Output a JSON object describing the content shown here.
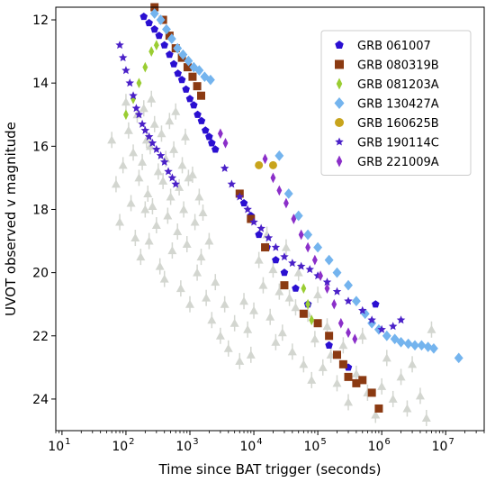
{
  "chart_data": {
    "type": "scatter",
    "xlabel": "Time since BAT trigger (seconds)",
    "ylabel": "UVOT observed v magnitude",
    "x_scale": "log",
    "xlim": [
      8,
      40000000
    ],
    "ylim": [
      25.0,
      11.6
    ],
    "x_ticks": [
      10,
      100,
      1000,
      10000,
      100000,
      1000000,
      10000000
    ],
    "x_tick_labels": [
      [
        "10",
        "1"
      ],
      [
        "10",
        "2"
      ],
      [
        "10",
        "3"
      ],
      [
        "10",
        "4"
      ],
      [
        "10",
        "5"
      ],
      [
        "10",
        "6"
      ],
      [
        "10",
        "7"
      ]
    ],
    "y_ticks": [
      12,
      14,
      16,
      18,
      20,
      22,
      24
    ],
    "y_tick_labels": [
      "12",
      "14",
      "16",
      "18",
      "20",
      "22",
      "24"
    ],
    "grid": false,
    "legend_position": "upper right",
    "background_sample": {
      "name": "",
      "color": "#d3d6d0",
      "marker": "triangle-up",
      "points": [
        [
          60,
          15.8
        ],
        [
          70,
          17.2
        ],
        [
          80,
          18.4
        ],
        [
          90,
          16.6
        ],
        [
          100,
          14.6
        ],
        [
          110,
          15.5
        ],
        [
          120,
          17.8
        ],
        [
          130,
          16.2
        ],
        [
          140,
          18.9
        ],
        [
          150,
          15.0
        ],
        [
          160,
          17.0
        ],
        [
          170,
          19.5
        ],
        [
          180,
          16.5
        ],
        [
          190,
          14.8
        ],
        [
          200,
          18.0
        ],
        [
          210,
          15.8
        ],
        [
          220,
          17.5
        ],
        [
          230,
          19.0
        ],
        [
          240,
          16.0
        ],
        [
          250,
          14.5
        ],
        [
          260,
          17.9
        ],
        [
          280,
          15.3
        ],
        [
          300,
          18.5
        ],
        [
          320,
          16.8
        ],
        [
          340,
          19.8
        ],
        [
          360,
          15.6
        ],
        [
          380,
          17.1
        ],
        [
          400,
          20.2
        ],
        [
          420,
          16.4
        ],
        [
          450,
          18.2
        ],
        [
          480,
          15.2
        ],
        [
          500,
          17.6
        ],
        [
          530,
          19.3
        ],
        [
          560,
          16.1
        ],
        [
          600,
          14.9
        ],
        [
          640,
          18.7
        ],
        [
          680,
          17.3
        ],
        [
          720,
          20.5
        ],
        [
          760,
          16.6
        ],
        [
          800,
          18.0
        ],
        [
          850,
          15.7
        ],
        [
          900,
          19.1
        ],
        [
          950,
          17.0
        ],
        [
          1000,
          21.0
        ],
        [
          1100,
          16.9
        ],
        [
          1200,
          18.4
        ],
        [
          1300,
          20.0
        ],
        [
          1400,
          17.6
        ],
        [
          1500,
          19.5
        ],
        [
          1600,
          18.1
        ],
        [
          1800,
          20.8
        ],
        [
          2000,
          19.0
        ],
        [
          2200,
          21.5
        ],
        [
          2500,
          20.3
        ],
        [
          3000,
          22.0
        ],
        [
          3500,
          21.0
        ],
        [
          4000,
          22.4
        ],
        [
          5000,
          21.6
        ],
        [
          6000,
          22.8
        ],
        [
          7000,
          20.9
        ],
        [
          8000,
          21.8
        ],
        [
          9000,
          22.6
        ],
        [
          10000,
          21.2
        ],
        [
          12000,
          19.6
        ],
        [
          14000,
          20.4
        ],
        [
          16000,
          18.8
        ],
        [
          18000,
          21.4
        ],
        [
          20000,
          19.9
        ],
        [
          22000,
          22.2
        ],
        [
          25000,
          20.6
        ],
        [
          28000,
          21.9
        ],
        [
          32000,
          19.2
        ],
        [
          36000,
          20.8
        ],
        [
          40000,
          22.5
        ],
        [
          45000,
          21.1
        ],
        [
          50000,
          20.0
        ],
        [
          60000,
          22.9
        ],
        [
          70000,
          21.3
        ],
        [
          80000,
          23.4
        ],
        [
          90000,
          22.1
        ],
        [
          100000,
          20.7
        ],
        [
          120000,
          23.0
        ],
        [
          140000,
          21.7
        ],
        [
          160000,
          22.6
        ],
        [
          200000,
          23.5
        ],
        [
          250000,
          22.3
        ],
        [
          300000,
          24.1
        ],
        [
          400000,
          23.2
        ],
        [
          500000,
          22.0
        ],
        [
          600000,
          23.8
        ],
        [
          800000,
          24.5
        ],
        [
          1000000,
          23.6
        ],
        [
          1200000,
          22.7
        ],
        [
          1500000,
          24.0
        ],
        [
          2000000,
          23.3
        ],
        [
          2500000,
          24.3
        ],
        [
          3000000,
          22.9
        ],
        [
          4000000,
          23.9
        ],
        [
          5000000,
          24.6
        ],
        [
          6000000,
          21.8
        ]
      ]
    },
    "series": [
      {
        "name": "GRB 061007",
        "color": "#2a0fd1",
        "marker": "pentagon",
        "x": [
          190,
          230,
          280,
          330,
          400,
          480,
          560,
          650,
          750,
          870,
          1000,
          1150,
          1320,
          1520,
          1750,
          2000,
          2200,
          2500,
          7000,
          9000,
          12000,
          16000,
          22000,
          30000,
          45000,
          70000,
          150000,
          300000,
          800000
        ],
        "y": [
          11.9,
          12.1,
          12.3,
          12.5,
          12.8,
          13.1,
          13.4,
          13.7,
          13.9,
          14.2,
          14.5,
          14.7,
          15.0,
          15.2,
          15.5,
          15.7,
          15.9,
          16.1,
          17.8,
          18.2,
          18.8,
          19.2,
          19.6,
          20.0,
          20.5,
          21.0,
          22.3,
          23.0,
          21.0
        ]
      },
      {
        "name": "GRB 080319B",
        "color": "#8b3a12",
        "marker": "square",
        "x": [
          280,
          380,
          480,
          600,
          750,
          920,
          1100,
          1300,
          1500,
          6000,
          9000,
          15000,
          30000,
          60000,
          100000,
          150000,
          200000,
          250000,
          300000,
          400000,
          500000,
          700000,
          900000
        ],
        "y": [
          11.6,
          12.0,
          12.5,
          12.9,
          13.2,
          13.5,
          13.8,
          14.1,
          14.4,
          17.5,
          18.3,
          19.2,
          20.4,
          21.3,
          21.6,
          22.0,
          22.6,
          22.9,
          23.3,
          23.5,
          23.4,
          23.8,
          24.3
        ]
      },
      {
        "name": "GRB 081203A",
        "color": "#9acd32",
        "marker": "thin-diamond",
        "x": [
          100,
          130,
          160,
          200,
          250,
          300,
          60000,
          70000,
          80000
        ],
        "y": [
          15.0,
          14.5,
          14.0,
          13.5,
          13.0,
          12.8,
          20.5,
          21.0,
          21.5
        ]
      },
      {
        "name": "GRB 130427A",
        "color": "#74b4ee",
        "marker": "diamond",
        "x": [
          280,
          350,
          430,
          520,
          640,
          780,
          950,
          1150,
          1400,
          1700,
          2100,
          25000,
          35000,
          50000,
          70000,
          100000,
          150000,
          200000,
          300000,
          400000,
          550000,
          700000,
          900000,
          1200000,
          1600000,
          2000000,
          2600000,
          3300000,
          4200000,
          5300000,
          6500000,
          16000000
        ],
        "y": [
          11.8,
          12.0,
          12.3,
          12.6,
          12.9,
          13.1,
          13.3,
          13.5,
          13.6,
          13.8,
          13.9,
          16.3,
          17.5,
          18.2,
          18.8,
          19.2,
          19.6,
          20.0,
          20.4,
          20.9,
          21.3,
          21.6,
          21.8,
          22.0,
          22.1,
          22.2,
          22.25,
          22.3,
          22.3,
          22.35,
          22.4,
          22.7
        ]
      },
      {
        "name": "GRB 160625B",
        "color": "#c8a41c",
        "marker": "circle",
        "x": [
          12000,
          20000
        ],
        "y": [
          16.6,
          16.6
        ]
      },
      {
        "name": "GRB 190114C",
        "color": "#4a20c8",
        "marker": "star",
        "x": [
          80,
          90,
          100,
          115,
          130,
          145,
          160,
          180,
          200,
          230,
          260,
          300,
          350,
          400,
          460,
          530,
          600,
          3500,
          4500,
          6000,
          8000,
          10000,
          13000,
          17000,
          22000,
          30000,
          40000,
          55000,
          75000,
          100000,
          140000,
          200000,
          300000,
          500000,
          700000,
          1000000,
          1500000,
          2000000
        ],
        "y": [
          12.8,
          13.2,
          13.6,
          14.0,
          14.4,
          14.8,
          15.0,
          15.3,
          15.5,
          15.7,
          15.9,
          16.1,
          16.3,
          16.5,
          16.8,
          17.0,
          17.2,
          16.7,
          17.2,
          17.6,
          18.0,
          18.4,
          18.6,
          18.9,
          19.2,
          19.5,
          19.7,
          19.8,
          19.9,
          20.1,
          20.3,
          20.6,
          20.9,
          21.2,
          21.5,
          21.8,
          21.7,
          21.5
        ]
      },
      {
        "name": "GRB 221009A",
        "color": "#8b2fc9",
        "marker": "thin-diamond",
        "x": [
          3000,
          3600,
          15000,
          20000,
          25000,
          32000,
          42000,
          55000,
          70000,
          90000,
          110000,
          140000,
          180000,
          230000,
          300000,
          380000
        ],
        "y": [
          15.6,
          15.9,
          16.4,
          17.0,
          17.4,
          17.8,
          18.3,
          18.8,
          19.2,
          19.6,
          20.1,
          20.5,
          21.0,
          21.6,
          21.9,
          22.1
        ]
      }
    ]
  }
}
